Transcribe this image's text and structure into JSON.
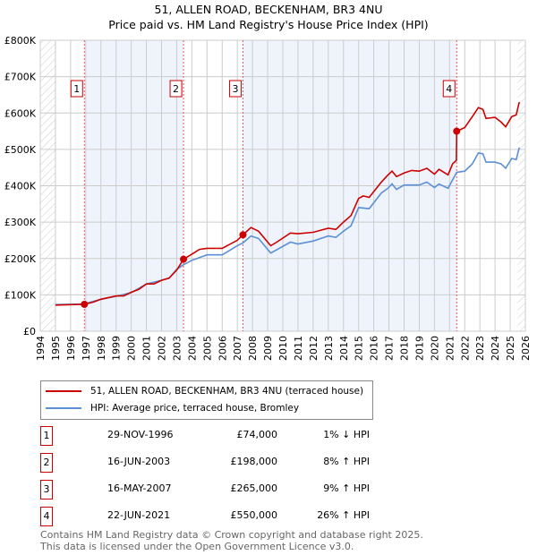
{
  "title": "51, ALLEN ROAD, BECKENHAM, BR3 4NU",
  "subtitle": "Price paid vs. HM Land Registry's House Price Index (HPI)",
  "chart_data": {
    "type": "line",
    "title": "51, ALLEN ROAD, BECKENHAM, BR3 4NU — Price paid vs. HM Land Registry's House Price Index (HPI)",
    "xlim": [
      1994,
      2026
    ],
    "ylim": [
      0,
      800000
    ],
    "x_ticks": [
      "1994",
      "1995",
      "1996",
      "1997",
      "1998",
      "1999",
      "2000",
      "2001",
      "2002",
      "2003",
      "2004",
      "2005",
      "2006",
      "2007",
      "2008",
      "2009",
      "2010",
      "2011",
      "2012",
      "2013",
      "2014",
      "2015",
      "2016",
      "2017",
      "2018",
      "2019",
      "2020",
      "2021",
      "2022",
      "2023",
      "2024",
      "2025",
      "2026"
    ],
    "y_ticks": [
      {
        "v": 0,
        "label": "£0"
      },
      {
        "v": 100000,
        "label": "£100K"
      },
      {
        "v": 200000,
        "label": "£200K"
      },
      {
        "v": 300000,
        "label": "£300K"
      },
      {
        "v": 400000,
        "label": "£400K"
      },
      {
        "v": 500000,
        "label": "£500K"
      },
      {
        "v": 600000,
        "label": "£600K"
      },
      {
        "v": 700000,
        "label": "£700K"
      },
      {
        "v": 800000,
        "label": "£800K"
      }
    ],
    "grid": true,
    "colors": {
      "property": "#cc0000",
      "hpi": "#5b8fd6",
      "shade": "#eef3fc"
    },
    "series": [
      {
        "name": "51, ALLEN ROAD, BECKENHAM, BR3 4NU (terraced house)",
        "points": [
          [
            1995,
            72000
          ],
          [
            1996.9,
            74000
          ],
          [
            1997.5,
            80000
          ],
          [
            1998,
            88000
          ],
          [
            1999,
            97000
          ],
          [
            1999.5,
            97000
          ],
          [
            2000,
            107000
          ],
          [
            2000.5,
            115000
          ],
          [
            2001,
            130000
          ],
          [
            2001.5,
            130000
          ],
          [
            2002,
            140000
          ],
          [
            2002.5,
            146000
          ],
          [
            2003,
            168000
          ],
          [
            2003.45,
            198000
          ],
          [
            2004,
            212000
          ],
          [
            2004.5,
            225000
          ],
          [
            2005,
            228000
          ],
          [
            2006,
            228000
          ],
          [
            2007,
            250000
          ],
          [
            2007.37,
            265000
          ],
          [
            2007.9,
            285000
          ],
          [
            2008.4,
            275000
          ],
          [
            2009.2,
            235000
          ],
          [
            2009.6,
            245000
          ],
          [
            2010.5,
            270000
          ],
          [
            2011,
            268000
          ],
          [
            2012,
            272000
          ],
          [
            2013,
            283000
          ],
          [
            2013.5,
            280000
          ],
          [
            2014,
            300000
          ],
          [
            2014.5,
            318000
          ],
          [
            2015,
            365000
          ],
          [
            2015.3,
            372000
          ],
          [
            2015.7,
            368000
          ],
          [
            2016.5,
            410000
          ],
          [
            2016.9,
            428000
          ],
          [
            2017.2,
            440000
          ],
          [
            2017.5,
            425000
          ],
          [
            2018,
            435000
          ],
          [
            2018.5,
            442000
          ],
          [
            2019,
            440000
          ],
          [
            2019.5,
            448000
          ],
          [
            2020,
            432000
          ],
          [
            2020.3,
            445000
          ],
          [
            2020.9,
            430000
          ],
          [
            2021.2,
            460000
          ],
          [
            2021.45,
            470000
          ],
          [
            2021.47,
            550000
          ],
          [
            2022,
            560000
          ],
          [
            2022.5,
            590000
          ],
          [
            2022.9,
            615000
          ],
          [
            2023.2,
            610000
          ],
          [
            2023.4,
            585000
          ],
          [
            2024,
            588000
          ],
          [
            2024.4,
            575000
          ],
          [
            2024.7,
            562000
          ],
          [
            2025.1,
            590000
          ],
          [
            2025.4,
            595000
          ],
          [
            2025.6,
            630000
          ]
        ]
      },
      {
        "name": "HPI: Average price, terraced house, Bromley",
        "points": [
          [
            1995,
            73000
          ],
          [
            1996.9,
            75000
          ],
          [
            1998,
            88000
          ],
          [
            1999,
            96000
          ],
          [
            2000,
            106000
          ],
          [
            2001,
            130000
          ],
          [
            2002,
            140000
          ],
          [
            2002.5,
            146000
          ],
          [
            2003,
            170000
          ],
          [
            2003.45,
            183000
          ],
          [
            2004,
            195000
          ],
          [
            2005,
            210000
          ],
          [
            2006,
            210000
          ],
          [
            2007,
            235000
          ],
          [
            2007.37,
            243000
          ],
          [
            2007.9,
            262000
          ],
          [
            2008.4,
            255000
          ],
          [
            2009.2,
            215000
          ],
          [
            2010.5,
            245000
          ],
          [
            2011,
            240000
          ],
          [
            2012,
            248000
          ],
          [
            2013,
            262000
          ],
          [
            2013.5,
            258000
          ],
          [
            2014,
            275000
          ],
          [
            2014.5,
            290000
          ],
          [
            2015,
            340000
          ],
          [
            2015.7,
            337000
          ],
          [
            2016.5,
            380000
          ],
          [
            2016.9,
            392000
          ],
          [
            2017.2,
            405000
          ],
          [
            2017.5,
            390000
          ],
          [
            2018,
            402000
          ],
          [
            2019,
            402000
          ],
          [
            2019.5,
            410000
          ],
          [
            2020,
            395000
          ],
          [
            2020.3,
            405000
          ],
          [
            2020.9,
            393000
          ],
          [
            2021.47,
            437000
          ],
          [
            2022,
            440000
          ],
          [
            2022.5,
            460000
          ],
          [
            2022.9,
            490000
          ],
          [
            2023.2,
            488000
          ],
          [
            2023.4,
            465000
          ],
          [
            2024,
            465000
          ],
          [
            2024.4,
            460000
          ],
          [
            2024.7,
            448000
          ],
          [
            2025.1,
            475000
          ],
          [
            2025.4,
            472000
          ],
          [
            2025.6,
            505000
          ]
        ]
      }
    ],
    "sales": [
      {
        "n": "1",
        "x": 1996.91,
        "price": 74000,
        "date": "29-NOV-1996",
        "price_label": "£74,000",
        "hpi": "1% ↓ HPI"
      },
      {
        "n": "2",
        "x": 2003.45,
        "price": 198000,
        "date": "16-JUN-2003",
        "price_label": "£198,000",
        "hpi": "8% ↑ HPI"
      },
      {
        "n": "3",
        "x": 2007.37,
        "price": 265000,
        "date": "16-MAY-2007",
        "price_label": "£265,000",
        "hpi": "9% ↑ HPI"
      },
      {
        "n": "4",
        "x": 2021.47,
        "price": 550000,
        "date": "22-JUN-2021",
        "price_label": "£550,000",
        "hpi": "26% ↑ HPI"
      }
    ],
    "data_range": [
      1995,
      2025.5
    ]
  },
  "footer": [
    "Contains HM Land Registry data © Crown copyright and database right 2025.",
    "This data is licensed under the Open Government Licence v3.0."
  ]
}
